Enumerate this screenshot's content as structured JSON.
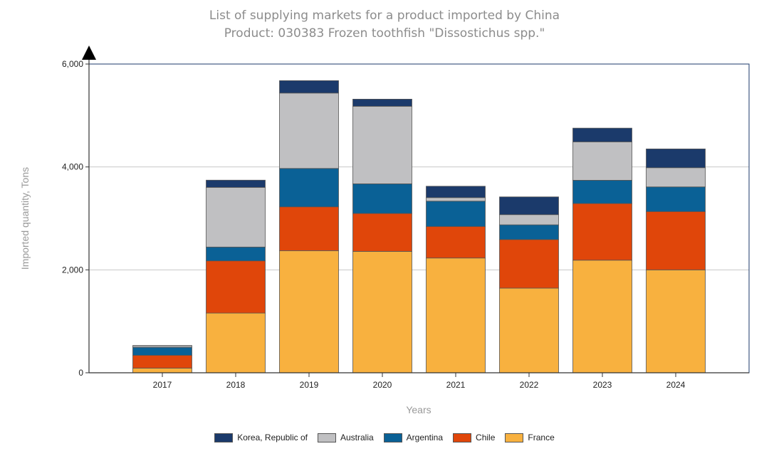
{
  "chart_data": {
    "type": "bar",
    "stacked": true,
    "title": "List of supplying markets for a product imported by China",
    "subtitle": "Product: 030383 Frozen toothfish \"Dissostichus spp.\"",
    "xlabel": "Years",
    "ylabel": "Imported quantity, Tons",
    "ylim": [
      0,
      6000
    ],
    "yticks": [
      0,
      2000,
      4000,
      6000
    ],
    "ytick_labels": [
      "0",
      "2,000",
      "4,000",
      "6,000"
    ],
    "categories": [
      "2017",
      "2018",
      "2019",
      "2020",
      "2021",
      "2022",
      "2023",
      "2024"
    ],
    "grid": true,
    "legend_position": "bottom",
    "series": [
      {
        "name": "France",
        "color": "#f8b13f",
        "values": [
          90,
          1160,
          2373,
          2359,
          2230,
          1645,
          2188,
          2000
        ]
      },
      {
        "name": "Chile",
        "color": "#e0460a",
        "values": [
          250,
          1015,
          852,
          737,
          613,
          944,
          1101,
          1133
        ]
      },
      {
        "name": "Argentina",
        "color": "#0a6196",
        "values": [
          155,
          268,
          746,
          576,
          492,
          286,
          452,
          479
        ]
      },
      {
        "name": "Australia",
        "color": "#c0c0c2",
        "values": [
          30,
          1160,
          1465,
          1507,
          69,
          198,
          747,
          373
        ]
      },
      {
        "name": "Korea, Republic of",
        "color": "#1b3a6b",
        "values": [
          5,
          140,
          241,
          138,
          221,
          345,
          266,
          365
        ]
      }
    ],
    "legend_order": [
      "Korea, Republic of",
      "Australia",
      "Argentina",
      "Chile",
      "France"
    ]
  }
}
